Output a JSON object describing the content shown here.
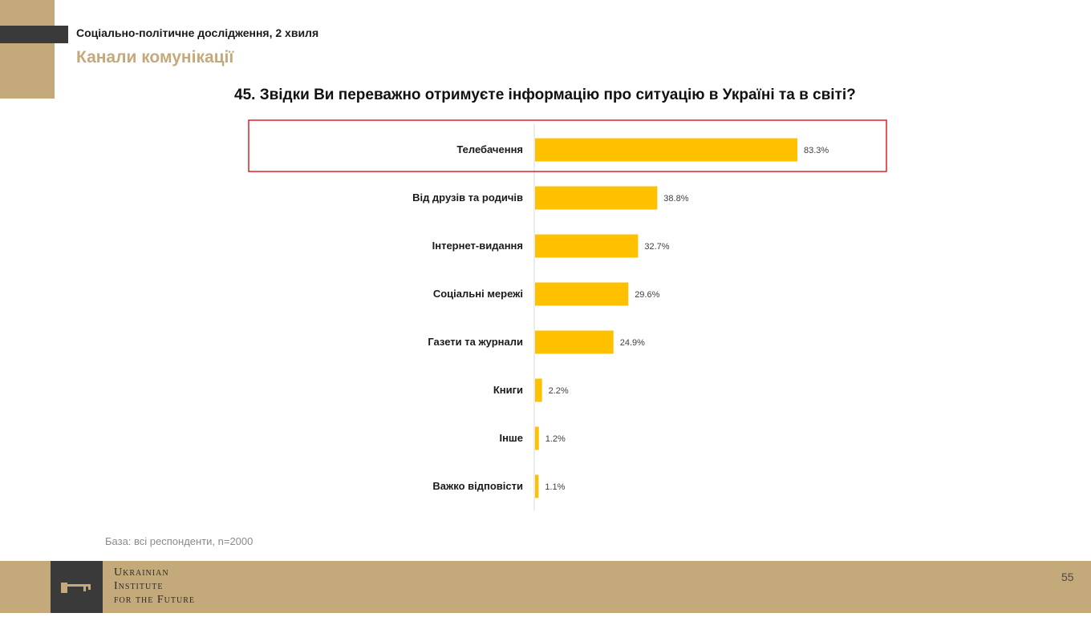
{
  "header": {
    "subtitle": "Соціально-політичне дослідження, 2 хвиля",
    "section_title": "Канали комунікації"
  },
  "question": "45. Звідки Ви переважно отримуєте інформацію про ситуацію в Україні та в світі?",
  "base_note": "База: всі респонденти, n=2000",
  "footer": {
    "logo_lines": [
      "Ukrainian",
      "Institute",
      "for the Future"
    ],
    "page_number": "55"
  },
  "colors": {
    "bar": "#ffc000",
    "highlight_border": "#e02020",
    "brand_gold": "#c4a97a",
    "brand_dark": "#3a3a3a"
  },
  "chart_data": {
    "type": "bar",
    "orientation": "horizontal",
    "categories": [
      "Телебачення",
      "Від друзів та родичів",
      "Інтернет-видання",
      "Соціальні мережі",
      "Газети та журнали",
      "Книги",
      "Інше",
      "Важко відповісти"
    ],
    "values": [
      83.3,
      38.8,
      32.7,
      29.6,
      24.9,
      2.2,
      1.2,
      1.1
    ],
    "value_labels": [
      "83.3%",
      "38.8%",
      "32.7%",
      "29.6%",
      "24.9%",
      "2.2%",
      "1.2%",
      "1.1%"
    ],
    "unit": "%",
    "xlim": [
      0,
      100
    ],
    "highlighted_category": "Телебачення",
    "grid": false,
    "legend": "none"
  }
}
